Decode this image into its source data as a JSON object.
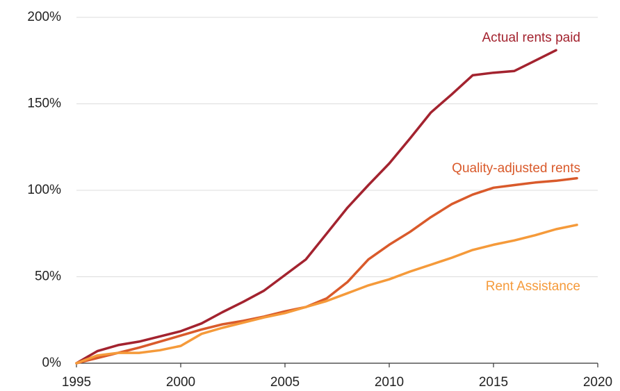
{
  "chart_data": {
    "type": "line",
    "x": [
      1995,
      1996,
      1997,
      1998,
      1999,
      2000,
      2001,
      2002,
      2003,
      2004,
      2005,
      2006,
      2007,
      2008,
      2009,
      2010,
      2011,
      2012,
      2013,
      2014,
      2015,
      2016,
      2017,
      2018,
      2019
    ],
    "series": [
      {
        "name": "Actual rents paid",
        "color": "#a3232f",
        "values": [
          0,
          7,
          10.5,
          12.5,
          15.5,
          18.5,
          23,
          29.5,
          35.5,
          42,
          51,
          60,
          75,
          90,
          103,
          115.5,
          130,
          145,
          155.5,
          166.5,
          168,
          169,
          175,
          181,
          null
        ]
      },
      {
        "name": "Quality-adjusted rents",
        "color": "#d95a2b",
        "values": [
          0,
          3,
          6,
          9,
          12.5,
          16,
          19.5,
          22.5,
          24.5,
          27,
          30,
          32.5,
          37.5,
          47,
          60,
          68.5,
          76,
          84.5,
          92,
          97.5,
          101.5,
          103,
          104.5,
          105.5,
          107
        ]
      },
      {
        "name": "Rent Assistance",
        "color": "#f59a3a",
        "values": [
          0,
          4.5,
          6,
          6,
          7.5,
          10,
          17,
          20.5,
          23.5,
          26.5,
          29,
          32.5,
          36,
          40.5,
          45,
          48.5,
          53,
          57,
          61,
          65.5,
          68.5,
          71,
          74,
          77.5,
          80
        ]
      }
    ],
    "xlim": [
      1995,
      2020
    ],
    "xticks": [
      1995,
      2000,
      2005,
      2010,
      2015,
      2020
    ],
    "ylim": [
      0,
      200
    ],
    "yticks": [
      {
        "value": 0,
        "label": "0%"
      },
      {
        "value": 50,
        "label": "50%"
      },
      {
        "value": 100,
        "label": "100%"
      },
      {
        "value": 150,
        "label": "150%"
      },
      {
        "value": 200,
        "label": "200%"
      }
    ],
    "grid": true
  }
}
